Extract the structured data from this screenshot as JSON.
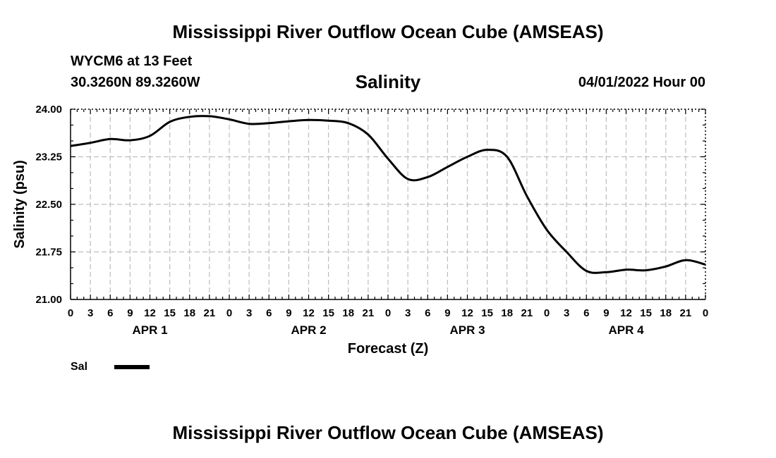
{
  "header": {
    "title": "Mississippi River Outflow Ocean Cube (AMSEAS)",
    "station": "WYCM6 at 13 Feet",
    "coordinates": "30.3260N  89.3260W",
    "date": "04/01/2022 Hour 00"
  },
  "footer": {
    "title": "Mississippi River Outflow Ocean Cube (AMSEAS)"
  },
  "chart_data": {
    "type": "line",
    "title": "Salinity",
    "xlabel": "Forecast (Z)",
    "ylabel": "Salinity (psu)",
    "ylim": [
      21.0,
      24.0
    ],
    "xlim": [
      0,
      96
    ],
    "y_ticks": [
      "21.00",
      "21.75",
      "22.50",
      "23.25",
      "24.00"
    ],
    "x_tick_labels": [
      "0",
      "3",
      "6",
      "9",
      "12",
      "15",
      "18",
      "21",
      "0",
      "3",
      "6",
      "9",
      "12",
      "15",
      "18",
      "21",
      "0",
      "3",
      "6",
      "9",
      "12",
      "15",
      "18",
      "21",
      "0",
      "3",
      "6",
      "9",
      "12",
      "15",
      "18",
      "21",
      "0"
    ],
    "day_labels": [
      "APR 1",
      "APR 2",
      "APR 3",
      "APR 4"
    ],
    "grid": true,
    "legend": {
      "position": "bottom-left",
      "entries": [
        "Sal"
      ]
    },
    "series": [
      {
        "name": "Sal",
        "color": "#000000",
        "x": [
          0,
          3,
          6,
          9,
          12,
          15,
          18,
          21,
          24,
          27,
          30,
          33,
          36,
          39,
          42,
          45,
          48,
          51,
          54,
          57,
          60,
          63,
          66,
          69,
          72,
          75,
          78,
          81,
          84,
          87,
          90,
          93,
          96
        ],
        "values": [
          23.42,
          23.47,
          23.53,
          23.51,
          23.58,
          23.8,
          23.88,
          23.89,
          23.84,
          23.77,
          23.78,
          23.81,
          23.83,
          23.82,
          23.78,
          23.6,
          23.22,
          22.9,
          22.93,
          23.09,
          23.25,
          23.36,
          23.25,
          22.63,
          22.1,
          21.75,
          21.45,
          21.43,
          21.47,
          21.46,
          21.52,
          21.62,
          21.55
        ]
      }
    ]
  }
}
